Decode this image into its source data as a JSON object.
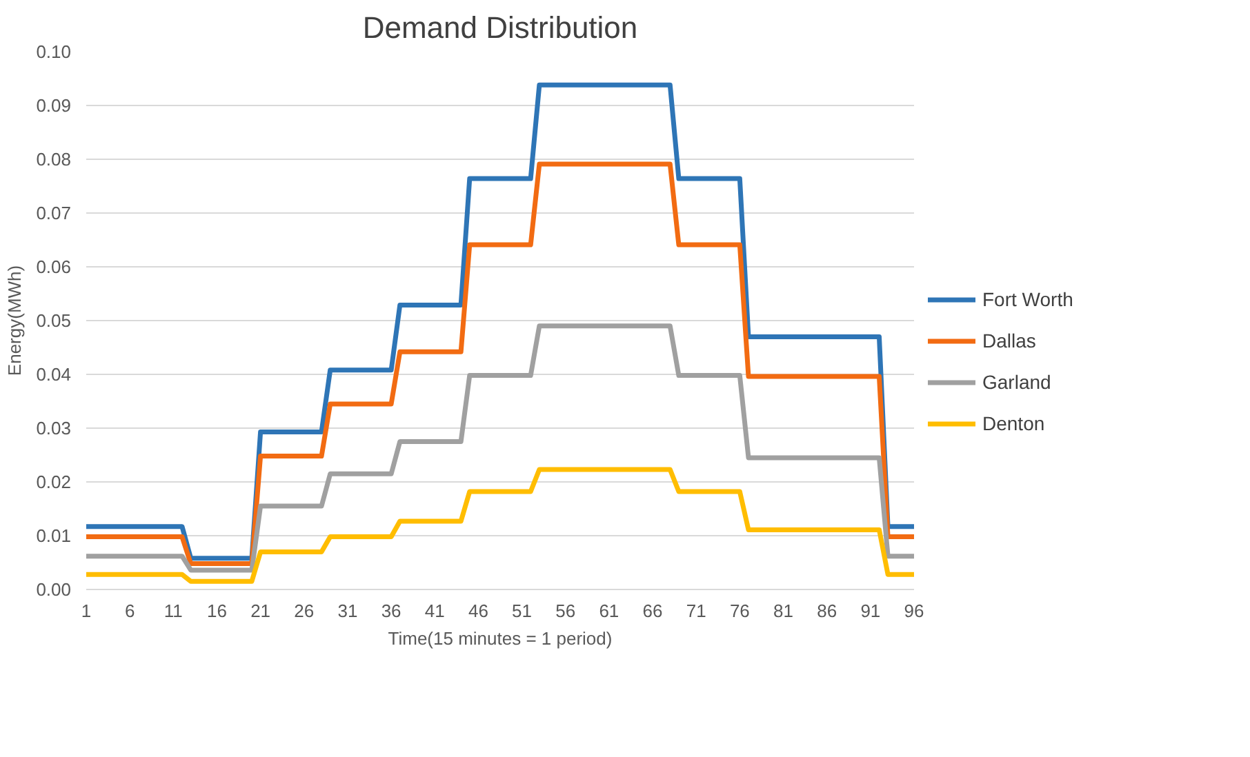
{
  "chart_data": {
    "type": "line",
    "title": "Demand Distribution",
    "xlabel": "Time(15 minutes = 1 period)",
    "ylabel": "Energy(MWh)",
    "x": [
      1,
      2,
      3,
      4,
      5,
      6,
      7,
      8,
      9,
      10,
      11,
      12,
      13,
      14,
      15,
      16,
      17,
      18,
      19,
      20,
      21,
      22,
      23,
      24,
      25,
      26,
      27,
      28,
      29,
      30,
      31,
      32,
      33,
      34,
      35,
      36,
      37,
      38,
      39,
      40,
      41,
      42,
      43,
      44,
      45,
      46,
      47,
      48,
      49,
      50,
      51,
      52,
      53,
      54,
      55,
      56,
      57,
      58,
      59,
      60,
      61,
      62,
      63,
      64,
      65,
      66,
      67,
      68,
      69,
      70,
      71,
      72,
      73,
      74,
      75,
      76,
      77,
      78,
      79,
      80,
      81,
      82,
      83,
      84,
      85,
      86,
      87,
      88,
      89,
      90,
      91,
      92,
      93,
      94,
      95,
      96
    ],
    "xlim": [
      1,
      96
    ],
    "xticks": [
      1,
      6,
      11,
      16,
      21,
      26,
      31,
      36,
      41,
      46,
      51,
      56,
      61,
      66,
      71,
      76,
      81,
      86,
      91,
      96
    ],
    "ylim": [
      0,
      0.1
    ],
    "yticks": [
      {
        "value": 0,
        "label": "0.00"
      },
      {
        "value": 0.01,
        "label": "0.01"
      },
      {
        "value": 0.02,
        "label": "0.02"
      },
      {
        "value": 0.03,
        "label": "0.03"
      },
      {
        "value": 0.04,
        "label": "0.04"
      },
      {
        "value": 0.05,
        "label": "0.05"
      },
      {
        "value": 0.06,
        "label": "0.06"
      },
      {
        "value": 0.07,
        "label": "0.07"
      },
      {
        "value": 0.08,
        "label": "0.08"
      },
      {
        "value": 0.09,
        "label": "0.09"
      },
      {
        "value": 0.1,
        "label": "0.10"
      }
    ],
    "grid": "y",
    "legend": "right",
    "series": [
      {
        "name": "Fort Worth",
        "color": "#2e75b6",
        "values": [
          0.0117,
          0.0117,
          0.0117,
          0.0117,
          0.0117,
          0.0117,
          0.0117,
          0.0117,
          0.0117,
          0.0117,
          0.0117,
          0.0117,
          0.0058,
          0.0058,
          0.0058,
          0.0058,
          0.0058,
          0.0058,
          0.0058,
          0.0058,
          0.0293,
          0.0293,
          0.0293,
          0.0293,
          0.0293,
          0.0293,
          0.0293,
          0.0293,
          0.0408,
          0.0408,
          0.0408,
          0.0408,
          0.0408,
          0.0408,
          0.0408,
          0.0408,
          0.0529,
          0.0529,
          0.0529,
          0.0529,
          0.0529,
          0.0529,
          0.0529,
          0.0529,
          0.0764,
          0.0764,
          0.0764,
          0.0764,
          0.0764,
          0.0764,
          0.0764,
          0.0764,
          0.0938,
          0.0938,
          0.0938,
          0.0938,
          0.0938,
          0.0938,
          0.0938,
          0.0938,
          0.0938,
          0.0938,
          0.0938,
          0.0938,
          0.0938,
          0.0938,
          0.0938,
          0.0938,
          0.0764,
          0.0764,
          0.0764,
          0.0764,
          0.0764,
          0.0764,
          0.0764,
          0.0764,
          0.047,
          0.047,
          0.047,
          0.047,
          0.047,
          0.047,
          0.047,
          0.047,
          0.047,
          0.047,
          0.047,
          0.047,
          0.047,
          0.047,
          0.047,
          0.047,
          0.0117,
          0.0117,
          0.0117,
          0.0117
        ]
      },
      {
        "name": "Dallas",
        "color": "#f26b12",
        "values": [
          0.0098,
          0.0098,
          0.0098,
          0.0098,
          0.0098,
          0.0098,
          0.0098,
          0.0098,
          0.0098,
          0.0098,
          0.0098,
          0.0098,
          0.0048,
          0.0048,
          0.0048,
          0.0048,
          0.0048,
          0.0048,
          0.0048,
          0.0048,
          0.0248,
          0.0248,
          0.0248,
          0.0248,
          0.0248,
          0.0248,
          0.0248,
          0.0248,
          0.0345,
          0.0345,
          0.0345,
          0.0345,
          0.0345,
          0.0345,
          0.0345,
          0.0345,
          0.0442,
          0.0442,
          0.0442,
          0.0442,
          0.0442,
          0.0442,
          0.0442,
          0.0442,
          0.0641,
          0.0641,
          0.0641,
          0.0641,
          0.0641,
          0.0641,
          0.0641,
          0.0641,
          0.0791,
          0.0791,
          0.0791,
          0.0791,
          0.0791,
          0.0791,
          0.0791,
          0.0791,
          0.0791,
          0.0791,
          0.0791,
          0.0791,
          0.0791,
          0.0791,
          0.0791,
          0.0791,
          0.0641,
          0.0641,
          0.0641,
          0.0641,
          0.0641,
          0.0641,
          0.0641,
          0.0641,
          0.0396,
          0.0396,
          0.0396,
          0.0396,
          0.0396,
          0.0396,
          0.0396,
          0.0396,
          0.0396,
          0.0396,
          0.0396,
          0.0396,
          0.0396,
          0.0396,
          0.0396,
          0.0396,
          0.0098,
          0.0098,
          0.0098,
          0.0098
        ]
      },
      {
        "name": "Garland",
        "color": "#a0a0a0",
        "values": [
          0.0062,
          0.0062,
          0.0062,
          0.0062,
          0.0062,
          0.0062,
          0.0062,
          0.0062,
          0.0062,
          0.0062,
          0.0062,
          0.0062,
          0.0036,
          0.0036,
          0.0036,
          0.0036,
          0.0036,
          0.0036,
          0.0036,
          0.0036,
          0.0155,
          0.0155,
          0.0155,
          0.0155,
          0.0155,
          0.0155,
          0.0155,
          0.0155,
          0.0215,
          0.0215,
          0.0215,
          0.0215,
          0.0215,
          0.0215,
          0.0215,
          0.0215,
          0.0275,
          0.0275,
          0.0275,
          0.0275,
          0.0275,
          0.0275,
          0.0275,
          0.0275,
          0.0398,
          0.0398,
          0.0398,
          0.0398,
          0.0398,
          0.0398,
          0.0398,
          0.0398,
          0.049,
          0.049,
          0.049,
          0.049,
          0.049,
          0.049,
          0.049,
          0.049,
          0.049,
          0.049,
          0.049,
          0.049,
          0.049,
          0.049,
          0.049,
          0.049,
          0.0398,
          0.0398,
          0.0398,
          0.0398,
          0.0398,
          0.0398,
          0.0398,
          0.0398,
          0.0245,
          0.0245,
          0.0245,
          0.0245,
          0.0245,
          0.0245,
          0.0245,
          0.0245,
          0.0245,
          0.0245,
          0.0245,
          0.0245,
          0.0245,
          0.0245,
          0.0245,
          0.0245,
          0.0062,
          0.0062,
          0.0062,
          0.0062
        ]
      },
      {
        "name": "Denton",
        "color": "#ffbd00",
        "values": [
          0.0028,
          0.0028,
          0.0028,
          0.0028,
          0.0028,
          0.0028,
          0.0028,
          0.0028,
          0.0028,
          0.0028,
          0.0028,
          0.0028,
          0.0015,
          0.0015,
          0.0015,
          0.0015,
          0.0015,
          0.0015,
          0.0015,
          0.0015,
          0.007,
          0.007,
          0.007,
          0.007,
          0.007,
          0.007,
          0.007,
          0.007,
          0.0098,
          0.0098,
          0.0098,
          0.0098,
          0.0098,
          0.0098,
          0.0098,
          0.0098,
          0.0127,
          0.0127,
          0.0127,
          0.0127,
          0.0127,
          0.0127,
          0.0127,
          0.0127,
          0.0182,
          0.0182,
          0.0182,
          0.0182,
          0.0182,
          0.0182,
          0.0182,
          0.0182,
          0.0223,
          0.0223,
          0.0223,
          0.0223,
          0.0223,
          0.0223,
          0.0223,
          0.0223,
          0.0223,
          0.0223,
          0.0223,
          0.0223,
          0.0223,
          0.0223,
          0.0223,
          0.0223,
          0.0182,
          0.0182,
          0.0182,
          0.0182,
          0.0182,
          0.0182,
          0.0182,
          0.0182,
          0.0111,
          0.0111,
          0.0111,
          0.0111,
          0.0111,
          0.0111,
          0.0111,
          0.0111,
          0.0111,
          0.0111,
          0.0111,
          0.0111,
          0.0111,
          0.0111,
          0.0111,
          0.0111,
          0.0028,
          0.0028,
          0.0028,
          0.0028
        ]
      }
    ]
  }
}
